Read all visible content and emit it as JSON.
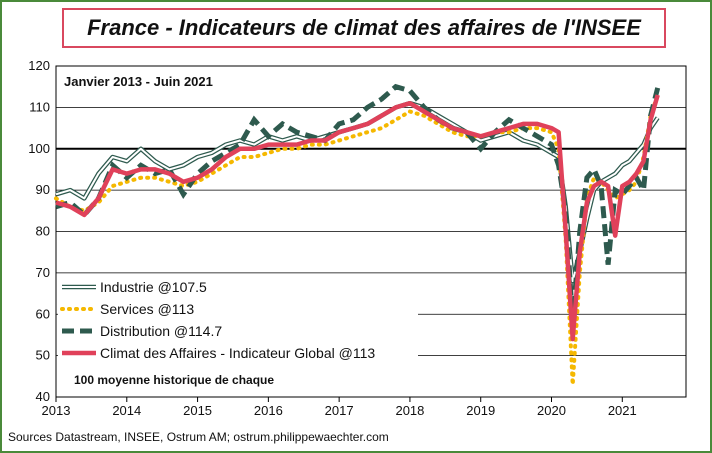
{
  "chart_data": {
    "type": "line",
    "title": "France - Indicateurs de climat des affaires de l'INSEE",
    "subtitle": "Janvier 2013 - Juin 2021",
    "source": "Sources Datastream, INSEE, Ostrum AM; ostrum.philippewaechter.com",
    "note": "100 moyenne historique  de chaque",
    "reference_line": 100,
    "ylim": [
      40,
      120
    ],
    "yticks": [
      40,
      50,
      60,
      70,
      80,
      90,
      100,
      110,
      120
    ],
    "xlim": [
      2013,
      2021.9
    ],
    "xticks": [
      2013,
      2014,
      2015,
      2016,
      2017,
      2018,
      2019,
      2020,
      2021
    ],
    "xticklabels": [
      "2013",
      "2014",
      "2015",
      "2016",
      "2017",
      "2018",
      "2019",
      "2020",
      "2021"
    ],
    "grid": "horizontal",
    "legend": "bottom-left",
    "series": [
      {
        "name": "Industrie @107.5",
        "style": "double-outline",
        "color": "#2e5a4e",
        "x": [
          2013.0,
          2013.2,
          2013.4,
          2013.6,
          2013.8,
          2014.0,
          2014.2,
          2014.4,
          2014.6,
          2014.8,
          2015.0,
          2015.2,
          2015.4,
          2015.6,
          2015.8,
          2016.0,
          2016.2,
          2016.4,
          2016.6,
          2016.8,
          2017.0,
          2017.2,
          2017.4,
          2017.6,
          2017.8,
          2018.0,
          2018.2,
          2018.4,
          2018.6,
          2018.8,
          2019.0,
          2019.2,
          2019.4,
          2019.6,
          2019.8,
          2020.0,
          2020.1,
          2020.2,
          2020.3,
          2020.4,
          2020.5,
          2020.6,
          2020.7,
          2020.8,
          2020.9,
          2021.0,
          2021.1,
          2021.2,
          2021.3,
          2021.4,
          2021.5
        ],
        "y": [
          89,
          90,
          88,
          94,
          98,
          97,
          100,
          97,
          95,
          96,
          98,
          99,
          101,
          102,
          101,
          103,
          102,
          103,
          102,
          103,
          104,
          105,
          106,
          108,
          110,
          111,
          110,
          108,
          106,
          104,
          102,
          103,
          104,
          102,
          101,
          99,
          98,
          86,
          68,
          75,
          83,
          90,
          92,
          93,
          94,
          96,
          97,
          99,
          101,
          105,
          107.5
        ]
      },
      {
        "name": "Services @113",
        "style": "dotted",
        "color": "#f5b800",
        "x": [
          2013.0,
          2013.2,
          2013.4,
          2013.6,
          2013.8,
          2014.0,
          2014.2,
          2014.4,
          2014.6,
          2014.8,
          2015.0,
          2015.2,
          2015.4,
          2015.6,
          2015.8,
          2016.0,
          2016.2,
          2016.4,
          2016.6,
          2016.8,
          2017.0,
          2017.2,
          2017.4,
          2017.6,
          2017.8,
          2018.0,
          2018.2,
          2018.4,
          2018.6,
          2018.8,
          2019.0,
          2019.2,
          2019.4,
          2019.6,
          2019.8,
          2020.0,
          2020.1,
          2020.2,
          2020.3,
          2020.4,
          2020.5,
          2020.6,
          2020.7,
          2020.8,
          2020.9,
          2021.0,
          2021.1,
          2021.2,
          2021.3,
          2021.4,
          2021.5
        ],
        "y": [
          88,
          86,
          85,
          87,
          91,
          92,
          93,
          93,
          92,
          91,
          92,
          94,
          96,
          98,
          98,
          99,
          100,
          100,
          101,
          101,
          102,
          103,
          104,
          105,
          107,
          109,
          108,
          106,
          104,
          103,
          103,
          104,
          104,
          105,
          105,
          104,
          100,
          78,
          43,
          70,
          88,
          93,
          92,
          90,
          88,
          89,
          90,
          92,
          98,
          108,
          113
        ]
      },
      {
        "name": "Distribution @114.7",
        "style": "dashed",
        "color": "#2e5a4e",
        "x": [
          2013.0,
          2013.2,
          2013.4,
          2013.6,
          2013.8,
          2014.0,
          2014.2,
          2014.4,
          2014.6,
          2014.8,
          2015.0,
          2015.2,
          2015.4,
          2015.6,
          2015.8,
          2016.0,
          2016.2,
          2016.4,
          2016.6,
          2016.8,
          2017.0,
          2017.2,
          2017.4,
          2017.6,
          2017.8,
          2018.0,
          2018.2,
          2018.4,
          2018.6,
          2018.8,
          2019.0,
          2019.2,
          2019.4,
          2019.6,
          2019.8,
          2020.0,
          2020.1,
          2020.2,
          2020.3,
          2020.4,
          2020.5,
          2020.6,
          2020.7,
          2020.8,
          2020.9,
          2021.0,
          2021.1,
          2021.2,
          2021.3,
          2021.4,
          2021.5
        ],
        "y": [
          86,
          87,
          84,
          88,
          96,
          93,
          96,
          94,
          95,
          89,
          94,
          97,
          99,
          101,
          107,
          103,
          106,
          104,
          103,
          102,
          106,
          107,
          110,
          112,
          115,
          114,
          110,
          107,
          105,
          104,
          100,
          104,
          107,
          105,
          103,
          101,
          96,
          85,
          58,
          80,
          93,
          95,
          91,
          72,
          90,
          89,
          91,
          93,
          90,
          108,
          114.7
        ]
      },
      {
        "name": "Climat des Affaires - Indicateur Global @113",
        "style": "thick",
        "color": "#e0415a",
        "x": [
          2013.0,
          2013.2,
          2013.4,
          2013.6,
          2013.8,
          2014.0,
          2014.2,
          2014.4,
          2014.6,
          2014.8,
          2015.0,
          2015.2,
          2015.4,
          2015.6,
          2015.8,
          2016.0,
          2016.2,
          2016.4,
          2016.6,
          2016.8,
          2017.0,
          2017.2,
          2017.4,
          2017.6,
          2017.8,
          2018.0,
          2018.2,
          2018.4,
          2018.6,
          2018.8,
          2019.0,
          2019.2,
          2019.4,
          2019.6,
          2019.8,
          2020.0,
          2020.1,
          2020.2,
          2020.3,
          2020.4,
          2020.5,
          2020.6,
          2020.7,
          2020.8,
          2020.9,
          2021.0,
          2021.1,
          2021.2,
          2021.3,
          2021.4,
          2021.5
        ],
        "y": [
          87,
          86,
          84,
          88,
          95,
          94,
          95,
          95,
          94,
          92,
          93,
          95,
          98,
          100,
          100,
          101,
          101,
          101,
          102,
          102,
          104,
          105,
          106,
          108,
          110,
          111,
          109,
          107,
          105,
          104,
          103,
          104,
          105,
          106,
          106,
          105,
          104,
          80,
          54,
          75,
          87,
          91,
          92,
          91,
          79,
          91,
          92,
          94,
          97,
          107,
          113
        ]
      }
    ]
  }
}
